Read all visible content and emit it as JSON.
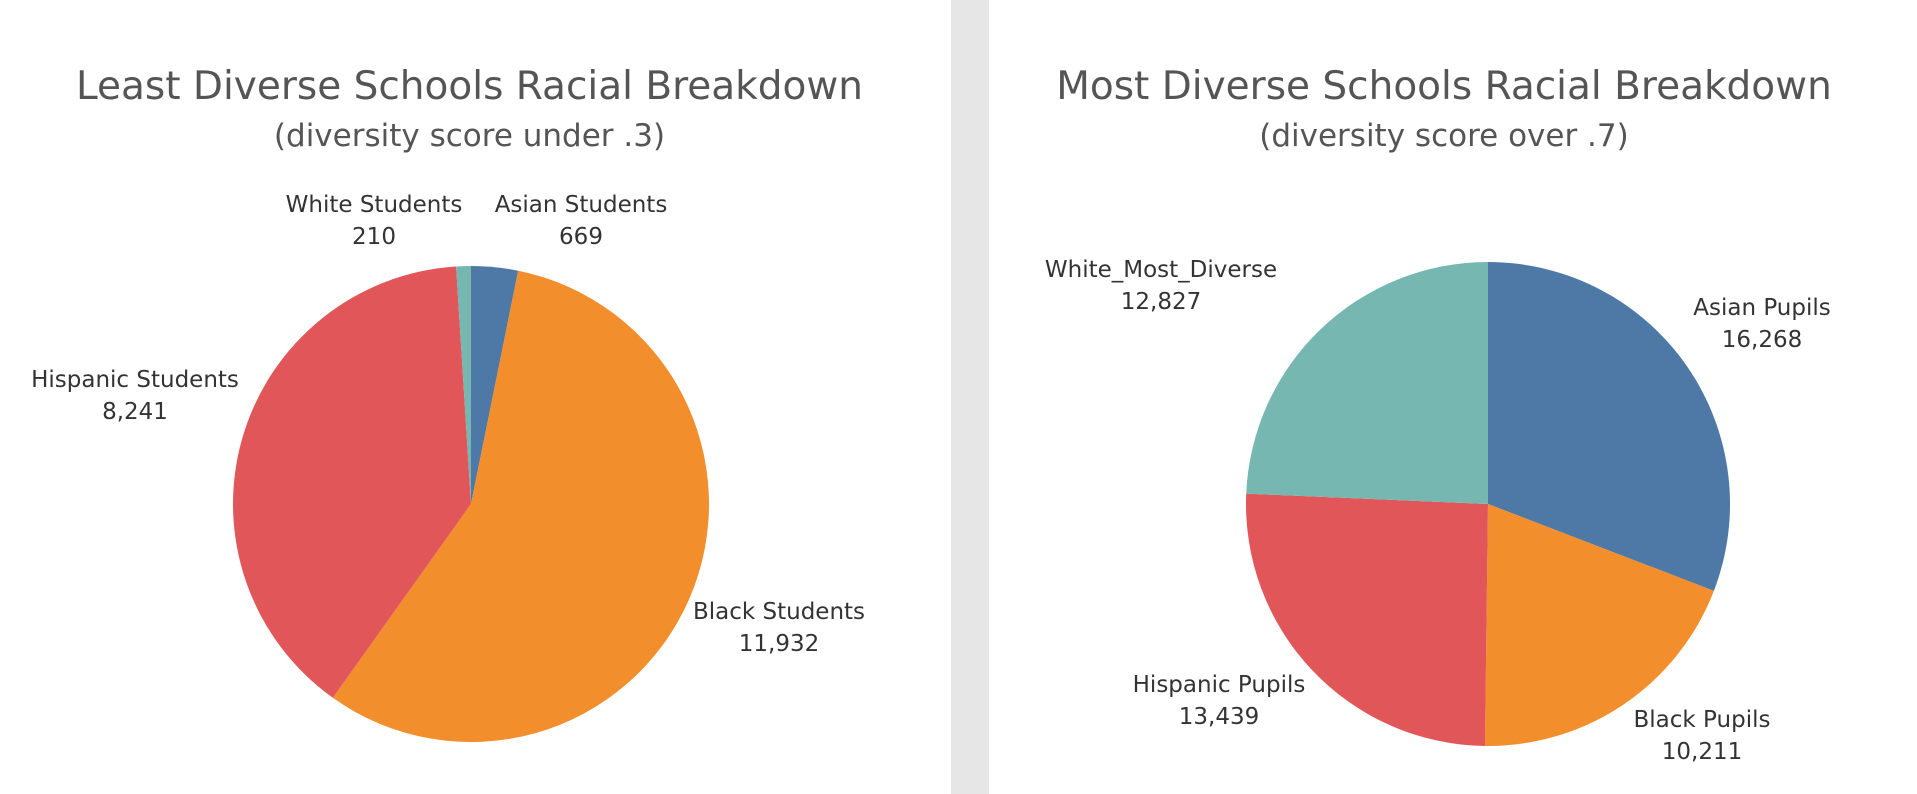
{
  "chart_data": [
    {
      "type": "pie",
      "title": "Least Diverse Schools Racial Breakdown",
      "subtitle": "(diversity score under .3)",
      "slices": [
        {
          "label": "Asian Students",
          "value": 669,
          "value_label": "669",
          "color": "#4e79a7"
        },
        {
          "label": "Black Students",
          "value": 11932,
          "value_label": "11,932",
          "color": "#f28e2b"
        },
        {
          "label": "Hispanic Students",
          "value": 8241,
          "value_label": "8,241",
          "color": "#e15759"
        },
        {
          "label": "White Students",
          "value": 210,
          "value_label": "210",
          "color": "#76b7b2"
        }
      ]
    },
    {
      "type": "pie",
      "title": "Most Diverse Schools Racial Breakdown",
      "subtitle": "(diversity score over .7)",
      "slices": [
        {
          "label": "Asian Pupils",
          "value": 16268,
          "value_label": "16,268",
          "color": "#4e79a7"
        },
        {
          "label": "Black Pupils",
          "value": 10211,
          "value_label": "10,211",
          "color": "#f28e2b"
        },
        {
          "label": "Hispanic Pupils",
          "value": 13439,
          "value_label": "13,439",
          "color": "#e15759"
        },
        {
          "label": "White_Most_Diverse",
          "value": 12827,
          "value_label": "12,827",
          "color": "#76b7b2"
        }
      ]
    }
  ]
}
